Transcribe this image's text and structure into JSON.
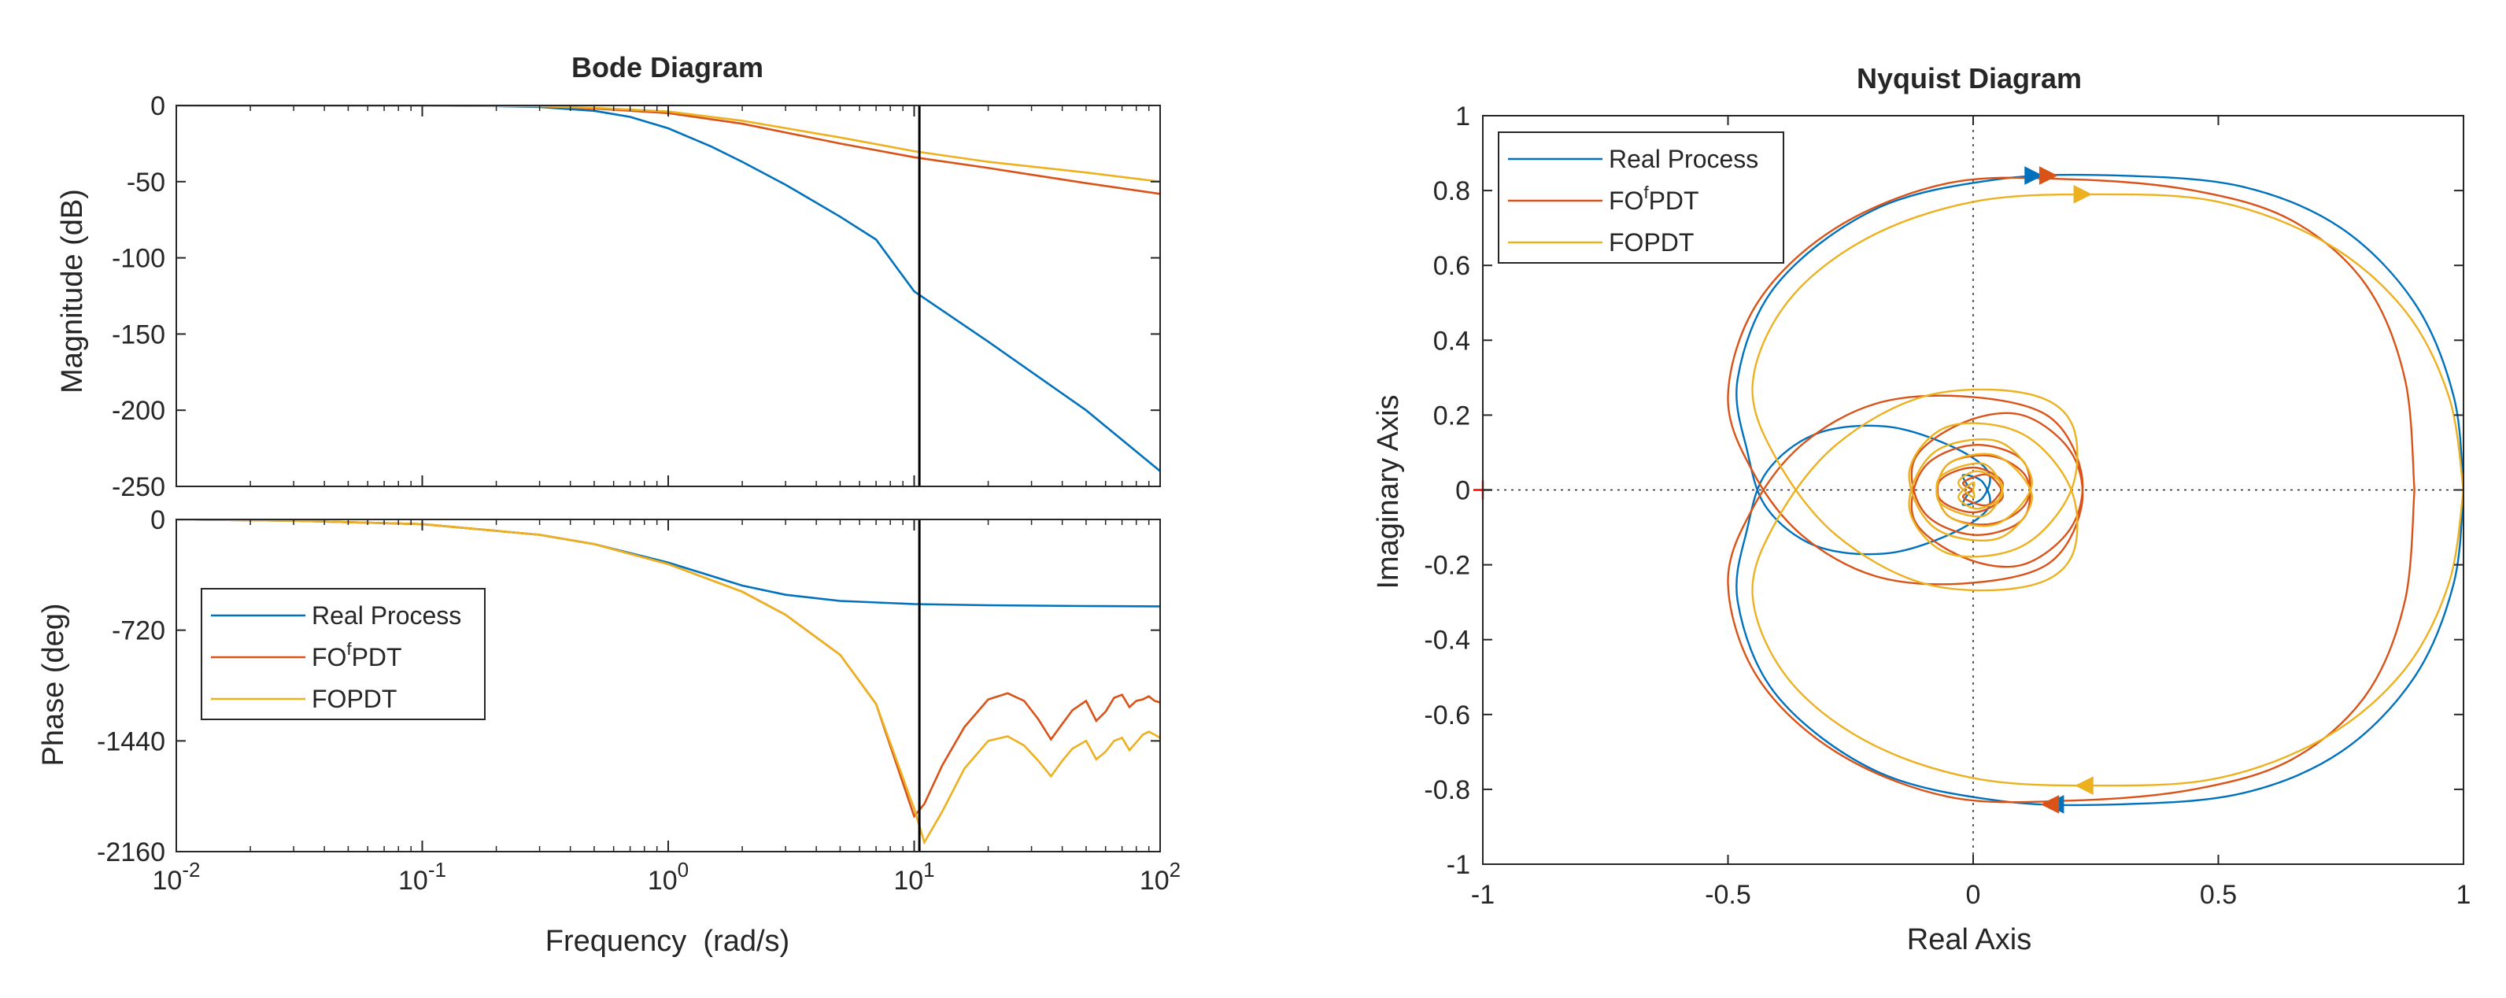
{
  "colors": {
    "real": "#0072BD",
    "fofpdt": "#D95319",
    "fopdt": "#EDB120",
    "axis": "#262626",
    "marker": "#FF0000"
  },
  "chart_data": [
    {
      "type": "line",
      "title": "Bode Diagram",
      "xlabel": "Frequency  (rad/s)",
      "xscale": "log",
      "xlim": [
        0.01,
        100
      ],
      "x_ticks": [
        {
          "base": "10",
          "exp": "-2"
        },
        {
          "base": "10",
          "exp": "-1"
        },
        {
          "base": "10",
          "exp": "0"
        },
        {
          "base": "10",
          "exp": "1"
        },
        {
          "base": "10",
          "exp": "2"
        }
      ],
      "vertical_line_x": 10.5,
      "magnitude": {
        "ylabel": "Magnitude (dB)",
        "ylim": [
          -250,
          0
        ],
        "yticks": [
          "0",
          "-50",
          "-100",
          "-150",
          "-200",
          "-250"
        ],
        "series": [
          {
            "name": "Real Process",
            "x": [
              0.01,
              0.1,
              0.2,
              0.3,
              0.5,
              0.7,
              1,
              1.5,
              2,
              3,
              5,
              7,
              10,
              20,
              50,
              100
            ],
            "values": [
              0,
              -0.1,
              -0.4,
              -1,
              -3.5,
              -7.5,
              -15,
              -27,
              -37,
              -52,
              -73,
              -88,
              -122,
              -155,
              -200,
              -240
            ]
          },
          {
            "name": "FOfPDT",
            "x": [
              0.01,
              0.1,
              0.3,
              0.5,
              1,
              2,
              5,
              10,
              20,
              50,
              100
            ],
            "values": [
              0,
              0,
              -0.5,
              -2,
              -5,
              -12,
              -25,
              -34,
              -41,
              -51,
              -58
            ]
          },
          {
            "name": "FOPDT",
            "x": [
              0.01,
              0.1,
              0.3,
              0.5,
              1,
              2,
              5,
              10,
              20,
              50,
              100
            ],
            "values": [
              0,
              0,
              -0.5,
              -1.5,
              -4,
              -10,
              -21,
              -30,
              -37,
              -44,
              -50
            ]
          }
        ]
      },
      "phase": {
        "ylabel": "Phase (deg)",
        "ylim": [
          -2160,
          0
        ],
        "yticks": [
          "0",
          "-720",
          "-1440",
          "-2160"
        ],
        "series": [
          {
            "name": "Real Process",
            "x": [
              0.01,
              0.03,
              0.1,
              0.3,
              0.5,
              1,
              2,
              3,
              5,
              10,
              20,
              50,
              100
            ],
            "values": [
              0,
              -8,
              -30,
              -100,
              -160,
              -280,
              -430,
              -490,
              -530,
              -550,
              -558,
              -563,
              -565
            ]
          },
          {
            "name": "FOfPDT",
            "x": [
              0.01,
              0.03,
              0.1,
              0.3,
              0.5,
              1,
              2,
              3,
              5,
              7,
              10,
              11,
              13,
              16,
              20,
              24,
              28,
              32,
              36,
              40,
              44,
              50,
              55,
              60,
              65,
              70,
              75,
              80,
              85,
              90,
              95,
              100
            ],
            "values": [
              0,
              -8,
              -30,
              -100,
              -160,
              -290,
              -470,
              -620,
              -880,
              -1200,
              -1930,
              -1850,
              -1600,
              -1350,
              -1170,
              -1130,
              -1180,
              -1300,
              -1430,
              -1330,
              -1240,
              -1180,
              -1310,
              -1250,
              -1160,
              -1140,
              -1220,
              -1180,
              -1170,
              -1150,
              -1180,
              -1190
            ]
          },
          {
            "name": "FOPDT",
            "x": [
              0.01,
              0.03,
              0.1,
              0.3,
              0.5,
              1,
              2,
              3,
              5,
              7,
              10,
              11,
              13,
              16,
              20,
              24,
              28,
              32,
              36,
              40,
              44,
              50,
              55,
              60,
              65,
              70,
              75,
              80,
              85,
              90,
              95,
              100
            ],
            "values": [
              0,
              -8,
              -30,
              -100,
              -160,
              -290,
              -470,
              -620,
              -880,
              -1200,
              -1880,
              -2100,
              -1900,
              -1620,
              -1440,
              -1410,
              -1470,
              -1570,
              -1670,
              -1570,
              -1490,
              -1440,
              -1560,
              -1510,
              -1440,
              -1420,
              -1500,
              -1450,
              -1400,
              -1380,
              -1400,
              -1420
            ]
          }
        ]
      },
      "legend": {
        "placement": "middle-left of phase panel",
        "entries": [
          {
            "name": "Real Process",
            "main": "Real Process",
            "sup": "",
            "rest": ""
          },
          {
            "name": "FOfPDT",
            "main": "FO",
            "sup": "f",
            "rest": "PDT"
          },
          {
            "name": "FOPDT",
            "main": "FOPDT",
            "sup": "",
            "rest": ""
          }
        ]
      }
    },
    {
      "type": "line",
      "title": "Nyquist Diagram",
      "xlabel": "Real Axis",
      "ylabel": "Imaginary Axis",
      "xlim": [
        -1,
        1
      ],
      "ylim": [
        -1,
        1
      ],
      "xticks": [
        "-1",
        "-0.5",
        "0",
        "0.5",
        "1"
      ],
      "yticks": [
        "1",
        "0.8",
        "0.6",
        "0.4",
        "0.2",
        "0",
        "-0.2",
        "-0.4",
        "-0.6",
        "-0.8",
        "-1"
      ],
      "critical_point": {
        "x": -1,
        "y": 0,
        "marker": "+"
      },
      "legend": {
        "placement": "top-left",
        "entries": [
          {
            "name": "Real Process",
            "main": "Real Process",
            "sup": "",
            "rest": ""
          },
          {
            "name": "FOfPDT",
            "main": "FO",
            "sup": "f",
            "rest": "PDT"
          },
          {
            "name": "FOPDT",
            "main": "FOPDT",
            "sup": "",
            "rest": ""
          }
        ]
      },
      "series": [
        {
          "name": "Real Process",
          "points": [
            [
              1.0,
              0
            ],
            [
              0.98,
              0.25
            ],
            [
              0.9,
              0.5
            ],
            [
              0.75,
              0.7
            ],
            [
              0.55,
              0.81
            ],
            [
              0.3,
              0.84
            ],
            [
              0.05,
              0.83
            ],
            [
              -0.2,
              0.75
            ],
            [
              -0.4,
              0.55
            ],
            [
              -0.48,
              0.3
            ],
            [
              -0.46,
              0.1
            ],
            [
              -0.42,
              -0.05
            ],
            [
              -0.32,
              -0.15
            ],
            [
              -0.18,
              -0.17
            ],
            [
              -0.05,
              -0.12
            ],
            [
              0.03,
              -0.05
            ],
            [
              0.02,
              0.02
            ],
            [
              -0.02,
              0.04
            ],
            [
              -0.01,
              0.01
            ],
            [
              0.0,
              0.0
            ]
          ],
          "direction_markers": [
            [
              0.12,
              0.84
            ],
            [
              0.17,
              -0.84
            ]
          ]
        },
        {
          "name": "FOfPDT",
          "points": [
            [
              0.9,
              0
            ],
            [
              0.88,
              0.3
            ],
            [
              0.8,
              0.55
            ],
            [
              0.65,
              0.72
            ],
            [
              0.45,
              0.8
            ],
            [
              0.2,
              0.83
            ],
            [
              -0.05,
              0.82
            ],
            [
              -0.28,
              0.7
            ],
            [
              -0.44,
              0.5
            ],
            [
              -0.5,
              0.25
            ],
            [
              -0.45,
              0.05
            ],
            [
              -0.35,
              -0.12
            ],
            [
              -0.2,
              -0.23
            ],
            [
              -0.02,
              -0.25
            ],
            [
              0.15,
              -0.2
            ],
            [
              0.22,
              -0.05
            ],
            [
              0.2,
              0.1
            ],
            [
              0.1,
              0.2
            ],
            [
              -0.02,
              0.18
            ],
            [
              -0.12,
              0.08
            ],
            [
              -0.1,
              -0.06
            ],
            [
              0.0,
              -0.12
            ],
            [
              0.1,
              -0.08
            ],
            [
              0.11,
              0.03
            ],
            [
              0.04,
              0.09
            ],
            [
              -0.05,
              0.07
            ],
            [
              -0.07,
              -0.02
            ],
            [
              0.0,
              -0.06
            ],
            [
              0.06,
              -0.02
            ],
            [
              0.03,
              0.04
            ],
            [
              -0.02,
              0.02
            ],
            [
              0.0,
              0.0
            ]
          ],
          "direction_markers": [
            [
              0.15,
              0.84
            ],
            [
              0.16,
              -0.84
            ]
          ]
        },
        {
          "name": "FOPDT",
          "points": [
            [
              1.0,
              0
            ],
            [
              0.97,
              0.25
            ],
            [
              0.88,
              0.48
            ],
            [
              0.72,
              0.66
            ],
            [
              0.5,
              0.77
            ],
            [
              0.25,
              0.79
            ],
            [
              0.0,
              0.77
            ],
            [
              -0.22,
              0.67
            ],
            [
              -0.38,
              0.5
            ],
            [
              -0.45,
              0.28
            ],
            [
              -0.4,
              0.08
            ],
            [
              -0.28,
              -0.12
            ],
            [
              -0.1,
              -0.25
            ],
            [
              0.1,
              -0.26
            ],
            [
              0.2,
              -0.18
            ],
            [
              0.2,
              0.0
            ],
            [
              0.1,
              0.15
            ],
            [
              -0.05,
              0.17
            ],
            [
              -0.13,
              0.05
            ],
            [
              -0.08,
              -0.1
            ],
            [
              0.05,
              -0.13
            ],
            [
              0.12,
              -0.02
            ],
            [
              0.05,
              0.09
            ],
            [
              -0.05,
              0.07
            ],
            [
              -0.07,
              -0.03
            ],
            [
              0.02,
              -0.07
            ],
            [
              0.06,
              0.01
            ],
            [
              0.01,
              0.05
            ],
            [
              -0.03,
              0.02
            ],
            [
              0.0,
              -0.02
            ],
            [
              0.0,
              0.0
            ]
          ],
          "direction_markers": [
            [
              0.22,
              0.79
            ],
            [
              0.23,
              -0.79
            ]
          ]
        }
      ]
    }
  ]
}
